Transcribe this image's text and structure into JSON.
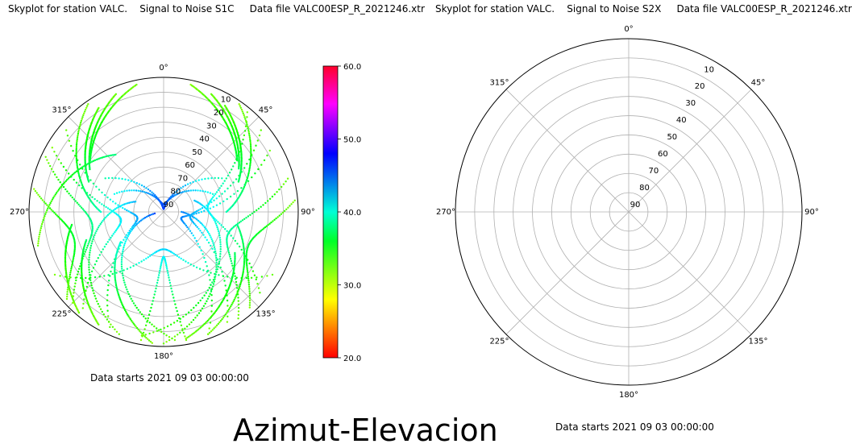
{
  "left_plot": {
    "title": "Skyplot for station VALC.    Signal to Noise S1C     Data file VALC00ESP_R_2021246.xtr",
    "data_starts": "Data starts 2021 09 03 00:00:00"
  },
  "right_plot": {
    "title": "Skyplot for station VALC.    Signal to Noise S2X     Data file VALC00ESP_R_2021246.xtr",
    "data_starts": "Data starts 2021 09 03 00:00:00"
  },
  "bottom_title": "Azimut-Elevacion",
  "chart_data": [
    {
      "type": "scatter",
      "projection": "polar",
      "title": "Skyplot for station VALC.    Signal to Noise S1C     Data file VALC00ESP_R_2021246.xtr",
      "azimuth_tick_labels": [
        "0°",
        "45°",
        "90°",
        "135°",
        "180°",
        "225°",
        "270°",
        "315°"
      ],
      "elevation_tick_labels": [
        "10",
        "20",
        "30",
        "40",
        "50",
        "60",
        "70",
        "80",
        "90"
      ],
      "elevation_range": [
        90,
        0
      ],
      "grid": true,
      "colorbar": {
        "ticks": [
          "20.0",
          "30.0",
          "40.0",
          "50.0",
          "60.0"
        ],
        "range": [
          20,
          60
        ],
        "colormap": "gist_rainbow (red-yellow-green-cyan-blue-magenta-red)"
      },
      "tracks": [
        {
          "az_start": 12,
          "az_end": 55,
          "el_start": 3,
          "el_end": 30,
          "el_peak": 30
        },
        {
          "az_start": 22,
          "az_end": 60,
          "el_start": 5,
          "el_end": 32,
          "el_peak": 32
        },
        {
          "az_start": 30,
          "az_end": 68,
          "el_start": 8,
          "el_end": 36,
          "el_peak": 36
        },
        {
          "az_start": 35,
          "az_end": 90,
          "el_start": 2,
          "el_end": 48,
          "el_peak": 48
        },
        {
          "az_start": 40,
          "az_end": 130,
          "el_start": 3,
          "el_end": 6,
          "el_peak": 62
        },
        {
          "az_start": 50,
          "az_end": 150,
          "el_start": 5,
          "el_end": 5,
          "el_peak": 72
        },
        {
          "az_start": 60,
          "az_end": 160,
          "el_start": 8,
          "el_end": 3,
          "el_peak": 80
        },
        {
          "az_start": 75,
          "az_end": 145,
          "el_start": 4,
          "el_end": 3,
          "el_peak": 45
        },
        {
          "az_start": 85,
          "az_end": 138,
          "el_start": 2,
          "el_end": 4,
          "el_peak": 30
        },
        {
          "az_start": 170,
          "az_end": 120,
          "el_start": 4,
          "el_end": 35,
          "el_peak": 35
        },
        {
          "az_start": 160,
          "az_end": 100,
          "el_start": 3,
          "el_end": 40,
          "el_peak": 40
        },
        {
          "az_start": 180,
          "az_end": 90,
          "el_start": 2,
          "el_end": 78,
          "el_peak": 78
        },
        {
          "az_start": 190,
          "az_end": 70,
          "el_start": 6,
          "el_end": 68,
          "el_peak": 72
        },
        {
          "az_start": 175,
          "az_end": 260,
          "el_start": 4,
          "el_end": 84,
          "el_peak": 84
        },
        {
          "az_start": 200,
          "az_end": 290,
          "el_start": 3,
          "el_end": 70,
          "el_peak": 70
        },
        {
          "az_start": 185,
          "az_end": 235,
          "el_start": 2,
          "el_end": 55,
          "el_peak": 55
        },
        {
          "az_start": 210,
          "az_end": 250,
          "el_start": 3,
          "el_end": 35,
          "el_peak": 35
        },
        {
          "az_start": 220,
          "az_end": 262,
          "el_start": 2,
          "el_end": 28,
          "el_peak": 28
        },
        {
          "az_start": 300,
          "az_end": 220,
          "el_start": 4,
          "el_end": 6,
          "el_peak": 62
        },
        {
          "az_start": 310,
          "az_end": 205,
          "el_start": 5,
          "el_end": 5,
          "el_peak": 72
        },
        {
          "az_start": 295,
          "az_end": 225,
          "el_start": 3,
          "el_end": 4,
          "el_peak": 42
        },
        {
          "az_start": 280,
          "az_end": 228,
          "el_start": 2,
          "el_end": 3,
          "el_peak": 28
        },
        {
          "az_start": 348,
          "az_end": 305,
          "el_start": 3,
          "el_end": 30,
          "el_peak": 30
        },
        {
          "az_start": 338,
          "az_end": 300,
          "el_start": 5,
          "el_end": 33,
          "el_peak": 33
        },
        {
          "az_start": 328,
          "az_end": 292,
          "el_start": 8,
          "el_end": 36,
          "el_peak": 36
        },
        {
          "az_start": 325,
          "az_end": 270,
          "el_start": 2,
          "el_end": 48,
          "el_peak": 48
        },
        {
          "az_start": 255,
          "az_end": 320,
          "el_start": 3,
          "el_end": 40,
          "el_peak": 40
        },
        {
          "az_start": 240,
          "az_end": 120,
          "el_start": 6,
          "el_end": 6,
          "el_peak": 65
        },
        {
          "az_start": 300,
          "az_end": 60,
          "el_start": 45,
          "el_end": 45,
          "el_peak": 88
        },
        {
          "az_start": 290,
          "az_end": 70,
          "el_start": 55,
          "el_end": 55,
          "el_peak": 85
        },
        {
          "az_start": 190,
          "az_end": 170,
          "el_start": 3,
          "el_end": 3,
          "el_peak": 60
        }
      ]
    },
    {
      "type": "scatter",
      "projection": "polar",
      "title": "Skyplot for station VALC.    Signal to Noise S2X     Data file VALC00ESP_R_2021246.xtr",
      "azimuth_tick_labels": [
        "0°",
        "45°",
        "90°",
        "135°",
        "180°",
        "225°",
        "270°",
        "315°"
      ],
      "elevation_tick_labels": [
        "10",
        "20",
        "30",
        "40",
        "50",
        "60",
        "70",
        "80",
        "90"
      ],
      "elevation_range": [
        90,
        0
      ],
      "grid": true,
      "tracks": []
    }
  ]
}
